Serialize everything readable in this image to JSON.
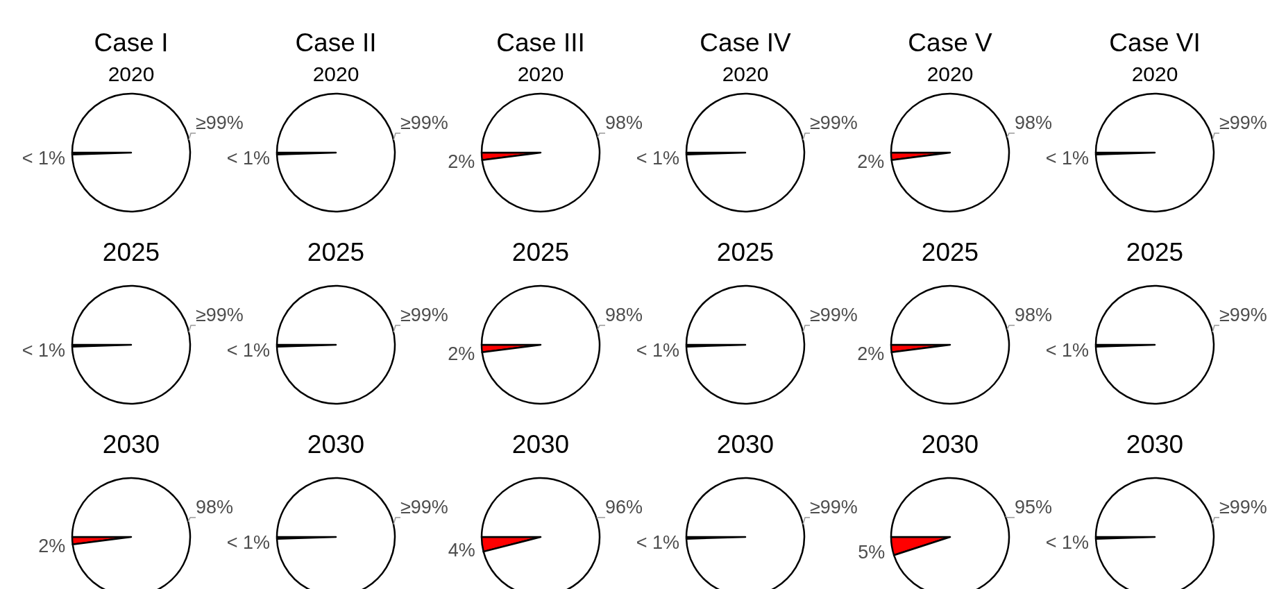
{
  "chart_data": [
    {
      "type": "pie",
      "title": "Case I",
      "subtitle": "2020",
      "categories": [
        null,
        null
      ],
      "values": [
        0.5,
        99.5
      ],
      "colors": [
        "#ff0000",
        "#ffffff"
      ],
      "value_labels": [
        "< 1%",
        "≥99%"
      ]
    },
    {
      "type": "pie",
      "title": "Case II",
      "subtitle": "2020",
      "categories": [
        null,
        null
      ],
      "values": [
        0.5,
        99.5
      ],
      "colors": [
        "#ff0000",
        "#ffffff"
      ],
      "value_labels": [
        "< 1%",
        "≥99%"
      ]
    },
    {
      "type": "pie",
      "title": "Case III",
      "subtitle": "2020",
      "categories": [
        null,
        null
      ],
      "values": [
        2,
        98
      ],
      "colors": [
        "#ff0000",
        "#ffffff"
      ],
      "value_labels": [
        "2%",
        "98%"
      ]
    },
    {
      "type": "pie",
      "title": "Case IV",
      "subtitle": "2020",
      "categories": [
        null,
        null
      ],
      "values": [
        0.5,
        99.5
      ],
      "colors": [
        "#ff0000",
        "#ffffff"
      ],
      "value_labels": [
        "< 1%",
        "≥99%"
      ]
    },
    {
      "type": "pie",
      "title": "Case V",
      "subtitle": "2020",
      "categories": [
        null,
        null
      ],
      "values": [
        2,
        98
      ],
      "colors": [
        "#ff0000",
        "#ffffff"
      ],
      "value_labels": [
        "2%",
        "98%"
      ]
    },
    {
      "type": "pie",
      "title": "Case VI",
      "subtitle": "2020",
      "categories": [
        null,
        null
      ],
      "values": [
        0.5,
        99.5
      ],
      "colors": [
        "#ff0000",
        "#ffffff"
      ],
      "value_labels": [
        "< 1%",
        "≥99%"
      ]
    },
    {
      "type": "pie",
      "title": "2025",
      "categories": [
        null,
        null
      ],
      "values": [
        0.5,
        99.5
      ],
      "colors": [
        "#ff0000",
        "#ffffff"
      ],
      "value_labels": [
        "< 1%",
        "≥99%"
      ]
    },
    {
      "type": "pie",
      "title": "2025",
      "categories": [
        null,
        null
      ],
      "values": [
        0.5,
        99.5
      ],
      "colors": [
        "#ff0000",
        "#ffffff"
      ],
      "value_labels": [
        "< 1%",
        "≥99%"
      ]
    },
    {
      "type": "pie",
      "title": "2025",
      "categories": [
        null,
        null
      ],
      "values": [
        2,
        98
      ],
      "colors": [
        "#ff0000",
        "#ffffff"
      ],
      "value_labels": [
        "2%",
        "98%"
      ]
    },
    {
      "type": "pie",
      "title": "2025",
      "categories": [
        null,
        null
      ],
      "values": [
        0.5,
        99.5
      ],
      "colors": [
        "#ff0000",
        "#ffffff"
      ],
      "value_labels": [
        "< 1%",
        "≥99%"
      ]
    },
    {
      "type": "pie",
      "title": "2025",
      "categories": [
        null,
        null
      ],
      "values": [
        2,
        98
      ],
      "colors": [
        "#ff0000",
        "#ffffff"
      ],
      "value_labels": [
        "2%",
        "98%"
      ]
    },
    {
      "type": "pie",
      "title": "2025",
      "categories": [
        null,
        null
      ],
      "values": [
        0.5,
        99.5
      ],
      "colors": [
        "#ff0000",
        "#ffffff"
      ],
      "value_labels": [
        "< 1%",
        "≥99%"
      ]
    },
    {
      "type": "pie",
      "title": "2030",
      "categories": [
        null,
        null
      ],
      "values": [
        2,
        98
      ],
      "colors": [
        "#ff0000",
        "#ffffff"
      ],
      "value_labels": [
        "2%",
        "98%"
      ]
    },
    {
      "type": "pie",
      "title": "2030",
      "categories": [
        null,
        null
      ],
      "values": [
        0.5,
        99.5
      ],
      "colors": [
        "#ff0000",
        "#ffffff"
      ],
      "value_labels": [
        "< 1%",
        "≥99%"
      ]
    },
    {
      "type": "pie",
      "title": "2030",
      "categories": [
        null,
        null
      ],
      "values": [
        4,
        96
      ],
      "colors": [
        "#ff0000",
        "#ffffff"
      ],
      "value_labels": [
        "4%",
        "96%"
      ]
    },
    {
      "type": "pie",
      "title": "2030",
      "categories": [
        null,
        null
      ],
      "values": [
        0.5,
        99.5
      ],
      "colors": [
        "#ff0000",
        "#ffffff"
      ],
      "value_labels": [
        "< 1%",
        "≥99%"
      ]
    },
    {
      "type": "pie",
      "title": "2030",
      "categories": [
        null,
        null
      ],
      "values": [
        5,
        95
      ],
      "colors": [
        "#ff0000",
        "#ffffff"
      ],
      "value_labels": [
        "5%",
        "95%"
      ]
    },
    {
      "type": "pie",
      "title": "2030",
      "categories": [
        null,
        null
      ],
      "values": [
        0.5,
        99.5
      ],
      "colors": [
        "#ff0000",
        "#ffffff"
      ],
      "value_labels": [
        "< 1%",
        "≥99%"
      ]
    }
  ]
}
